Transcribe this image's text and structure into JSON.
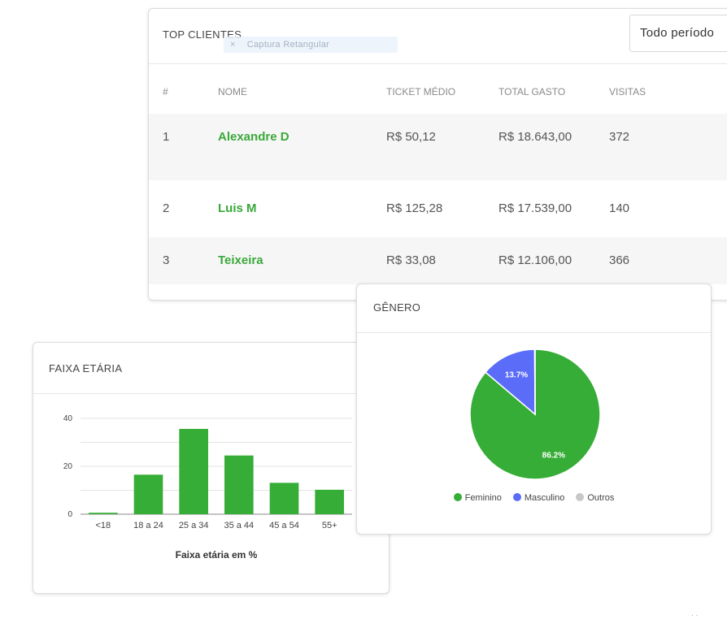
{
  "top_clients": {
    "title": "TOP CLIENTES",
    "capture_overlay": "Captura Retangular",
    "capture_close": "×",
    "period": "Todo período",
    "columns": [
      "#",
      "NOME",
      "TICKET MÉDIO",
      "TOTAL GASTO",
      "VISITAS"
    ],
    "rows": [
      {
        "rank": "1",
        "name": "Alexandre D",
        "ticket": "R$ 50,12",
        "total": "R$ 18.643,00",
        "visits": "372"
      },
      {
        "rank": "2",
        "name": "Luis M",
        "ticket": "R$ 125,28",
        "total": "R$ 17.539,00",
        "visits": "140"
      },
      {
        "rank": "3",
        "name": "Teixeira",
        "ticket": "R$ 33,08",
        "total": "R$ 12.106,00",
        "visits": "366"
      }
    ]
  },
  "age_chart": {
    "title": "FAIXA ETÁRIA",
    "color": "#36ad36"
  },
  "gender_chart": {
    "title": "GÊNERO",
    "colors": {
      "Feminino": "#36ad36",
      "Masculino": "#5b6cf9",
      "Outros": "#c8c8c8"
    }
  },
  "chart_data": [
    {
      "type": "bar",
      "categories": [
        "<18",
        "18 a 24",
        "25 a 34",
        "35 a 44",
        "45 a 54",
        "55+"
      ],
      "values": [
        0.6,
        16.5,
        35.6,
        24.5,
        13.1,
        10.2
      ],
      "title": "",
      "xlabel": "Faixa etária em %",
      "ylabel": "",
      "ylim": [
        0,
        40
      ],
      "yticks": [
        0,
        20,
        40
      ],
      "grid": true
    },
    {
      "type": "pie",
      "labels": [
        "Feminino",
        "Masculino",
        "Outros"
      ],
      "values": [
        86.2,
        13.7,
        0.1
      ],
      "display_labels": [
        "86.2%",
        "13.7%",
        ""
      ],
      "legend": "bottom"
    }
  ]
}
